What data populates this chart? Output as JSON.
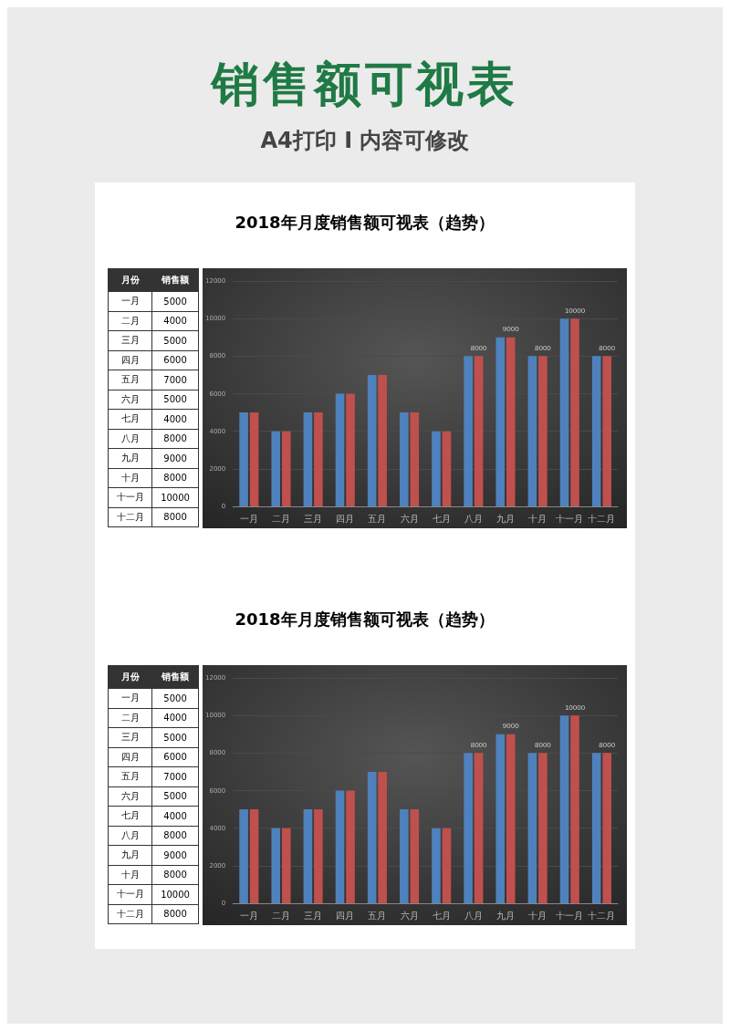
{
  "chart_data": [
    {
      "type": "other",
      "annotations": [
        "销售额可视表",
        "A4打印 I 内容可修改"
      ],
      "xlabel": "月份",
      "ylabel": "销售额",
      "categories": [
        "一月",
        "二月",
        "三月",
        "四月",
        "五月",
        "六月",
        "七月",
        "八月",
        "九月",
        "十月",
        "十一月",
        "十二月"
      ],
      "values": [
        5000,
        4000,
        5000,
        6000,
        7000,
        5000,
        4000,
        8000,
        9000,
        8000,
        10000,
        8000
      ],
      "data_labels": true
    },
    {
      "type": "bar",
      "title": "2018年月度销售额可视表（趋势）",
      "categories": [
        "一月",
        "二月",
        "三月",
        "四月",
        "五月",
        "六月",
        "七月",
        "八月",
        "九月",
        "十月",
        "十一月",
        "十二月"
      ],
      "series": [
        {
          "color": "#4f81bd",
          "values": [
            5000,
            4000,
            5000,
            6000,
            7000,
            5000,
            4000,
            8000,
            9000,
            8000,
            10000,
            8000
          ]
        },
        {
          "color": "#c0504d",
          "values": [
            5000,
            4000,
            5000,
            6000,
            7000,
            5000,
            4000,
            8000,
            9000,
            8000,
            10000,
            8000
          ],
          "value_labels": [
            null,
            null,
            null,
            null,
            null,
            null,
            null,
            "8000",
            "9000",
            "8000",
            "10000",
            "8000"
          ]
        }
      ],
      "ylim": [
        0,
        12000
      ],
      "yticks": [
        0,
        2000,
        4000,
        6000,
        8000,
        10000,
        12000
      ],
      "grid": "y"
    },
    {
      "type": "other",
      "xlabel": "月份",
      "ylabel": "销售额",
      "categories": [
        "一月",
        "二月",
        "三月",
        "四月",
        "五月",
        "六月",
        "七月",
        "八月",
        "九月",
        "十月",
        "十一月",
        "十二月"
      ],
      "values": [
        5000,
        4000,
        5000,
        6000,
        7000,
        5000,
        4000,
        8000,
        9000,
        8000,
        10000,
        8000
      ],
      "data_labels": true
    },
    {
      "type": "bar",
      "title": "2018年月度销售额可视表（趋势）",
      "categories": [
        "一月",
        "二月",
        "三月",
        "四月",
        "五月",
        "六月",
        "七月",
        "八月",
        "九月",
        "十月",
        "十一月",
        "十二月"
      ],
      "series": [
        {
          "color": "#4f81bd",
          "values": [
            5000,
            4000,
            5000,
            6000,
            7000,
            5000,
            4000,
            8000,
            9000,
            8000,
            10000,
            8000
          ]
        },
        {
          "color": "#c0504d",
          "values": [
            5000,
            4000,
            5000,
            6000,
            7000,
            5000,
            4000,
            8000,
            9000,
            8000,
            10000,
            8000
          ],
          "value_labels": [
            null,
            null,
            null,
            null,
            null,
            null,
            null,
            "8000",
            "9000",
            "8000",
            "10000",
            "8000"
          ]
        }
      ],
      "ylim": [
        0,
        12000
      ],
      "yticks": [
        0,
        2000,
        4000,
        6000,
        8000,
        10000,
        12000
      ],
      "grid": "y"
    }
  ]
}
